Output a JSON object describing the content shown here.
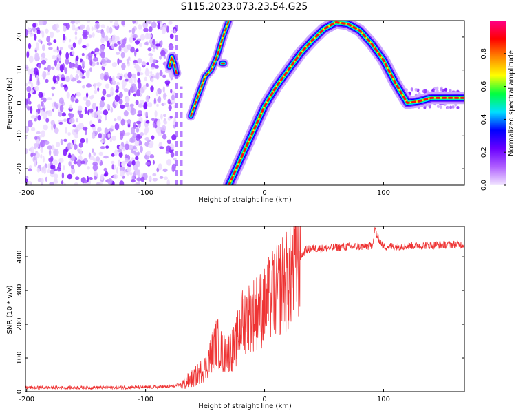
{
  "title": "S115.2023.073.23.54.G25",
  "chart_data": [
    {
      "type": "heatmap",
      "xlabel": "Height of straight line (km)",
      "ylabel": "Frequency (Hz)",
      "xlim": [
        -201,
        168
      ],
      "ylim": [
        -25,
        25
      ],
      "x_ticks": [
        -200,
        -100,
        0,
        100
      ],
      "y_ticks": [
        -20,
        -10,
        0,
        10,
        20
      ],
      "colorbar": {
        "label": "Normalized spectral amplitude",
        "range": [
          0,
          1
        ],
        "ticks": [
          0.0,
          0.2,
          0.4,
          0.6,
          0.8
        ],
        "tick_labels": [
          "0.0",
          "0.2",
          "0.4",
          "0.6",
          "0.8"
        ],
        "colormap": [
          "#f2e6ff",
          "#b060ff",
          "#6a00ff",
          "#0000ff",
          "#00e0ff",
          "#00ff40",
          "#ffff00",
          "#ff8800",
          "#ff0000",
          "#ff0088"
        ]
      },
      "ridge_main": {
        "x": [
          -30,
          -20,
          -10,
          0,
          10,
          20,
          30,
          40,
          50,
          60,
          70,
          80,
          90,
          100,
          110,
          120,
          130,
          140,
          150,
          160,
          168
        ],
        "y": [
          -25,
          -17,
          -9,
          -1,
          5,
          10,
          15,
          19,
          22.5,
          24.5,
          24,
          22,
          18,
          13,
          6,
          0,
          0.5,
          1.5,
          1.5,
          1.5,
          1.5
        ]
      },
      "ridge_fragments": [
        {
          "x": [
            -80,
            -78,
            -76,
            -74
          ],
          "y": [
            11,
            14,
            12,
            9
          ]
        },
        {
          "x": [
            -62,
            -60,
            -58,
            -55,
            -50,
            -45,
            -40,
            -35,
            -30
          ],
          "y": [
            -4,
            -2,
            0,
            3,
            8,
            10,
            14,
            20,
            25
          ]
        },
        {
          "x": [
            -36,
            -34
          ],
          "y": [
            12,
            12
          ]
        }
      ],
      "noise_region_x": [
        -201,
        -75
      ]
    },
    {
      "type": "line",
      "xlabel": "Height of straight line (km)",
      "ylabel": "SNR (10 * v/v)",
      "xlim": [
        -201,
        168
      ],
      "ylim": [
        0,
        490
      ],
      "x_ticks": [
        -200,
        -100,
        0,
        100
      ],
      "y_ticks": [
        0,
        100,
        200,
        300,
        400
      ],
      "color": "#ee3333",
      "series": [
        {
          "x": [
            -201,
            -150,
            -100,
            -80,
            -70,
            -60,
            -50,
            -45,
            -40,
            -35,
            -30,
            -25,
            -20,
            -15,
            -10,
            -5,
            0,
            5,
            10,
            15,
            20,
            25,
            30,
            35,
            40,
            50,
            60,
            70,
            80,
            90,
            93,
            100,
            120,
            140,
            160,
            168
          ],
          "y": [
            12,
            12,
            13,
            15,
            20,
            40,
            70,
            110,
            150,
            110,
            120,
            130,
            200,
            220,
            230,
            240,
            250,
            280,
            300,
            320,
            330,
            370,
            400,
            420,
            425,
            425,
            428,
            430,
            430,
            432,
            470,
            430,
            432,
            435,
            436,
            435
          ]
        }
      ]
    }
  ]
}
